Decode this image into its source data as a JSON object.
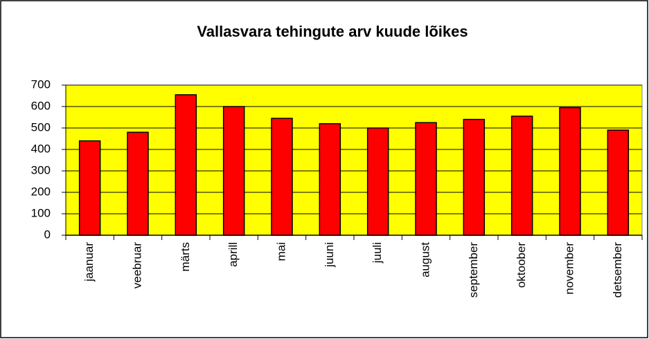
{
  "chart_data": {
    "type": "bar",
    "title": "Vallasvara tehingute arv kuude lõikes",
    "categories": [
      "jaanuar",
      "veebruar",
      "märts",
      "aprill",
      "mai",
      "juuni",
      "juuli",
      "august",
      "september",
      "oktoober",
      "november",
      "detsember"
    ],
    "values": [
      440,
      480,
      655,
      600,
      545,
      520,
      500,
      525,
      540,
      555,
      595,
      490
    ],
    "color": "#ff0000",
    "plot_background": "#ffff00",
    "ylim": [
      0,
      700
    ],
    "yticks": [
      0,
      100,
      200,
      300,
      400,
      500,
      600,
      700
    ],
    "grid": true
  }
}
